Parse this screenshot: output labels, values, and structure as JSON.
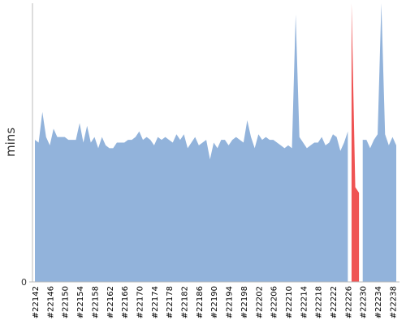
{
  "chart_data": {
    "type": "area",
    "y_label": "mins",
    "categories": [
      "#22142",
      null,
      null,
      null,
      "#22146",
      null,
      null,
      null,
      "#22150",
      null,
      null,
      null,
      "#22154",
      null,
      null,
      null,
      "#22158",
      null,
      null,
      null,
      "#22162",
      null,
      null,
      null,
      "#22166",
      null,
      null,
      null,
      "#22170",
      null,
      null,
      null,
      "#22174",
      null,
      null,
      null,
      "#22178",
      null,
      null,
      null,
      "#22182",
      null,
      null,
      null,
      "#22186",
      null,
      null,
      null,
      "#22190",
      null,
      null,
      null,
      "#22194",
      null,
      null,
      null,
      "#22198",
      null,
      null,
      null,
      "#22202",
      null,
      null,
      null,
      "#22206",
      null,
      null,
      null,
      "#22210",
      null,
      null,
      null,
      "#22214",
      null,
      null,
      null,
      "#22218",
      null,
      null,
      null,
      "#22222",
      null,
      null,
      null,
      "#22226",
      null,
      null,
      null,
      "#22230",
      null,
      null,
      null,
      "#22234",
      null,
      null,
      null,
      "#22238",
      null
    ],
    "series": [
      {
        "color": "#92b3db",
        "values": [
          51,
          50,
          61,
          52,
          49,
          55,
          52,
          52,
          52,
          51,
          51,
          51,
          57,
          50,
          56,
          50,
          52,
          48,
          52,
          49,
          48,
          48,
          50,
          50,
          50,
          51,
          51,
          52,
          54,
          51,
          52,
          51,
          49,
          52,
          51,
          52,
          51,
          50,
          53,
          51,
          53,
          48,
          50,
          52,
          49,
          50,
          51,
          44,
          50,
          48,
          51,
          51,
          49,
          51,
          52,
          51,
          50,
          58,
          52,
          48,
          53,
          51,
          52,
          51,
          51,
          50,
          49,
          48,
          49,
          48,
          96,
          52,
          50,
          48,
          49,
          50,
          50,
          52,
          49,
          50,
          53,
          52,
          47,
          50,
          54,
          null,
          null,
          null,
          51,
          51,
          48,
          51,
          53,
          100,
          53,
          49,
          52,
          49
        ]
      },
      {
        "color": "#ef5454",
        "values": [
          null,
          null,
          null,
          null,
          null,
          null,
          null,
          null,
          null,
          null,
          null,
          null,
          null,
          null,
          null,
          null,
          null,
          null,
          null,
          null,
          null,
          null,
          null,
          null,
          null,
          null,
          null,
          null,
          null,
          null,
          null,
          null,
          null,
          null,
          null,
          null,
          null,
          null,
          null,
          null,
          null,
          null,
          null,
          null,
          null,
          null,
          null,
          null,
          null,
          null,
          null,
          null,
          null,
          null,
          null,
          null,
          null,
          null,
          null,
          null,
          null,
          null,
          null,
          null,
          null,
          null,
          null,
          null,
          null,
          null,
          null,
          null,
          null,
          null,
          null,
          null,
          null,
          null,
          null,
          null,
          null,
          null,
          null,
          null,
          null,
          100,
          34,
          32,
          null,
          null,
          null,
          null,
          null,
          null,
          null,
          null,
          null,
          null
        ]
      }
    ],
    "ylim": [
      0,
      100
    ],
    "yticks": [
      0
    ]
  }
}
